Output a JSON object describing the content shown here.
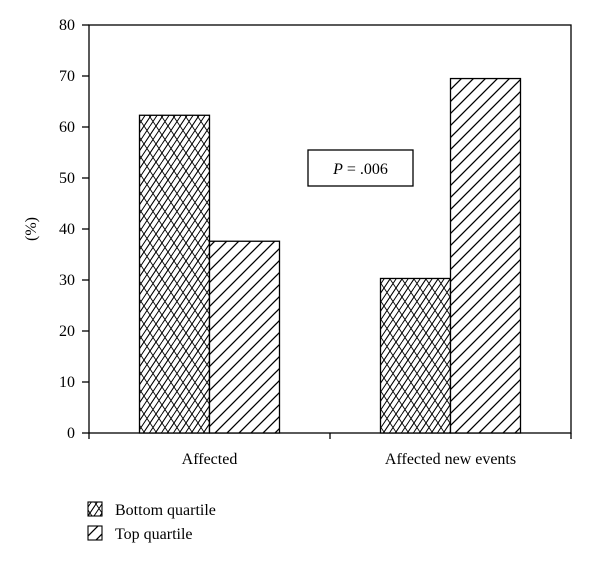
{
  "chart_data": {
    "type": "bar",
    "categories": [
      "Affected",
      "Affected new events"
    ],
    "series": [
      {
        "name": "Bottom quartile",
        "values": [
          62.3,
          30.3
        ],
        "pattern": "crosshatch"
      },
      {
        "name": "Top quartile",
        "values": [
          37.6,
          69.5
        ],
        "pattern": "diagonal"
      }
    ],
    "xlabel": "",
    "ylabel": "(%)",
    "ylim": [
      0,
      80
    ],
    "yticks": [
      "0",
      "10",
      "20",
      "30",
      "40",
      "50",
      "60",
      "70",
      "80"
    ],
    "grid": false,
    "legend_position": "bottom-left",
    "annotation": {
      "italic": "P",
      "rest": " = .006"
    },
    "colors": {
      "bar_fill": "#ffffff",
      "bar_stroke": "#000000",
      "hatch": "#000000"
    }
  }
}
